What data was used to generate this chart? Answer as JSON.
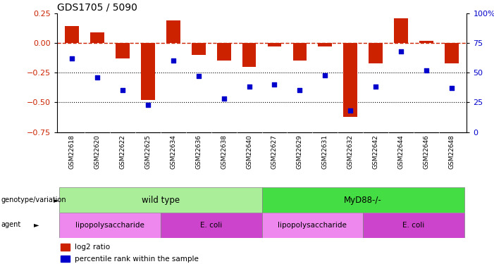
{
  "title": "GDS1705 / 5090",
  "samples": [
    "GSM22618",
    "GSM22620",
    "GSM22622",
    "GSM22625",
    "GSM22634",
    "GSM22636",
    "GSM22638",
    "GSM22640",
    "GSM22627",
    "GSM22629",
    "GSM22631",
    "GSM22632",
    "GSM22642",
    "GSM22644",
    "GSM22646",
    "GSM22648"
  ],
  "log2_ratio": [
    0.14,
    0.09,
    -0.13,
    -0.48,
    0.19,
    -0.1,
    -0.15,
    -0.2,
    -0.03,
    -0.15,
    -0.03,
    -0.62,
    -0.17,
    0.21,
    0.02,
    -0.17
  ],
  "percentile": [
    62,
    46,
    35,
    23,
    60,
    47,
    28,
    38,
    40,
    35,
    48,
    18,
    38,
    68,
    52,
    37
  ],
  "bar_color": "#cc2200",
  "dot_color": "#0000cc",
  "ylim_left": [
    -0.75,
    0.25
  ],
  "ylim_right": [
    0,
    100
  ],
  "yticks_left": [
    0.25,
    0.0,
    -0.25,
    -0.5,
    -0.75
  ],
  "yticks_right": [
    100,
    75,
    50,
    25,
    0
  ],
  "hline_y": 0,
  "dotline1": -0.25,
  "dotline2": -0.5,
  "genotype_groups": [
    {
      "label": "wild type",
      "start": 0,
      "end": 8,
      "color": "#aaee99"
    },
    {
      "label": "MyD88-/-",
      "start": 8,
      "end": 16,
      "color": "#44dd44"
    }
  ],
  "agent_groups": [
    {
      "label": "lipopolysaccharide",
      "start": 0,
      "end": 4,
      "color": "#ee88ee"
    },
    {
      "label": "E. coli",
      "start": 4,
      "end": 8,
      "color": "#cc44cc"
    },
    {
      "label": "lipopolysaccharide",
      "start": 8,
      "end": 12,
      "color": "#ee88ee"
    },
    {
      "label": "E. coli",
      "start": 12,
      "end": 16,
      "color": "#cc44cc"
    }
  ],
  "legend_items": [
    {
      "label": "log2 ratio",
      "color": "#cc2200"
    },
    {
      "label": "percentile rank within the sample",
      "color": "#0000cc"
    }
  ],
  "genotype_label": "genotype/variation",
  "agent_label": "agent",
  "bar_width": 0.55,
  "background_color": "#ffffff",
  "label_bg_color": "#cccccc",
  "sample_area_bg": "#cccccc"
}
